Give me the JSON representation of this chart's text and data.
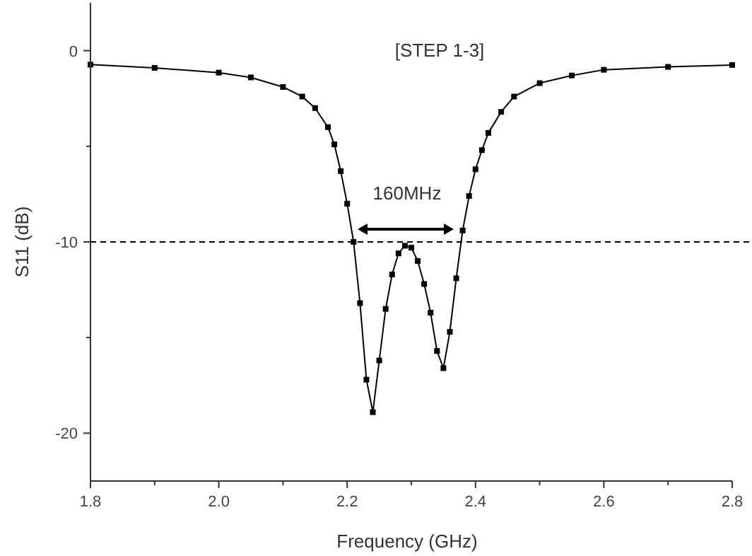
{
  "chart_data": {
    "type": "line",
    "title": "[STEP 1-3]",
    "xlabel": "Frequency (GHz)",
    "ylabel": "S11 (dB)",
    "x": [
      1.8,
      1.9,
      2.0,
      2.05,
      2.1,
      2.13,
      2.15,
      2.17,
      2.18,
      2.19,
      2.2,
      2.21,
      2.22,
      2.23,
      2.24,
      2.25,
      2.26,
      2.27,
      2.28,
      2.29,
      2.3,
      2.31,
      2.32,
      2.33,
      2.34,
      2.35,
      2.36,
      2.37,
      2.38,
      2.39,
      2.4,
      2.41,
      2.42,
      2.44,
      2.46,
      2.5,
      2.55,
      2.6,
      2.7,
      2.8
    ],
    "series": [
      {
        "color": "#000000",
        "values": [
          -0.73,
          -0.9,
          -1.15,
          -1.4,
          -1.9,
          -2.4,
          -3.0,
          -4.0,
          -4.9,
          -6.3,
          -8.0,
          -10.0,
          -13.2,
          -17.2,
          -18.9,
          -16.2,
          -13.5,
          -11.7,
          -10.6,
          -10.2,
          -10.3,
          -11.0,
          -12.2,
          -13.7,
          -15.7,
          -16.6,
          -14.7,
          -11.9,
          -9.4,
          -7.6,
          -6.2,
          -5.2,
          -4.3,
          -3.2,
          -2.4,
          -1.7,
          -1.3,
          -1.0,
          -0.85,
          -0.75
        ]
      }
    ],
    "xlim": [
      1.8,
      2.8
    ],
    "ylim": [
      -22.5,
      2.5
    ],
    "xticks": [
      1.8,
      {
        "value": 1.9,
        "label": null
      },
      {
        "value": 2.0,
        "label": "2.0"
      },
      {
        "value": 2.1,
        "label": null
      },
      2.2,
      {
        "value": 2.3,
        "label": null
      },
      2.4,
      {
        "value": 2.5,
        "label": null
      },
      2.6,
      {
        "value": 2.7,
        "label": null
      },
      2.8
    ],
    "yticks": [
      -20,
      {
        "value": -15,
        "label": null
      },
      -10,
      {
        "value": -5,
        "label": null
      },
      0
    ],
    "ref_lines": [
      {
        "axis": "y",
        "value": -10,
        "line_style": "dashed",
        "color": "#000000"
      }
    ],
    "annotations": [
      "160MHz"
    ],
    "marker": "square",
    "line_style": "solid",
    "grid": false
  }
}
